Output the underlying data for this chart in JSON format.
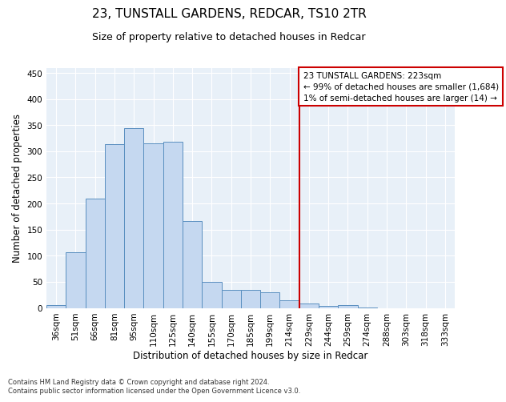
{
  "title1": "23, TUNSTALL GARDENS, REDCAR, TS10 2TR",
  "title2": "Size of property relative to detached houses in Redcar",
  "xlabel": "Distribution of detached houses by size in Redcar",
  "ylabel": "Number of detached properties",
  "footnote": "Contains HM Land Registry data © Crown copyright and database right 2024.\nContains public sector information licensed under the Open Government Licence v3.0.",
  "categories": [
    "36sqm",
    "51sqm",
    "66sqm",
    "81sqm",
    "95sqm",
    "110sqm",
    "125sqm",
    "140sqm",
    "155sqm",
    "170sqm",
    "185sqm",
    "199sqm",
    "214sqm",
    "229sqm",
    "244sqm",
    "259sqm",
    "274sqm",
    "288sqm",
    "303sqm",
    "318sqm",
    "333sqm"
  ],
  "values": [
    5,
    106,
    210,
    313,
    345,
    315,
    318,
    167,
    50,
    35,
    35,
    30,
    15,
    8,
    4,
    5,
    1,
    0,
    0,
    0,
    0
  ],
  "bar_color": "#c5d8f0",
  "bar_edge_color": "#5a8fc0",
  "property_line_color": "#cc0000",
  "annotation_line1": "23 TUNSTALL GARDENS: 223sqm",
  "annotation_line2": "← 99% of detached houses are smaller (1,684)",
  "annotation_line3": "1% of semi-detached houses are larger (14) →",
  "annotation_box_color": "#cc0000",
  "ylim": [
    0,
    460
  ],
  "yticks": [
    0,
    50,
    100,
    150,
    200,
    250,
    300,
    350,
    400,
    450
  ],
  "background_color": "#e8f0f8",
  "grid_color": "#ffffff",
  "title_fontsize": 11,
  "subtitle_fontsize": 9,
  "tick_fontsize": 7.5,
  "ylabel_fontsize": 8.5,
  "xlabel_fontsize": 8.5,
  "annotation_fontsize": 7.5,
  "footnote_fontsize": 6
}
